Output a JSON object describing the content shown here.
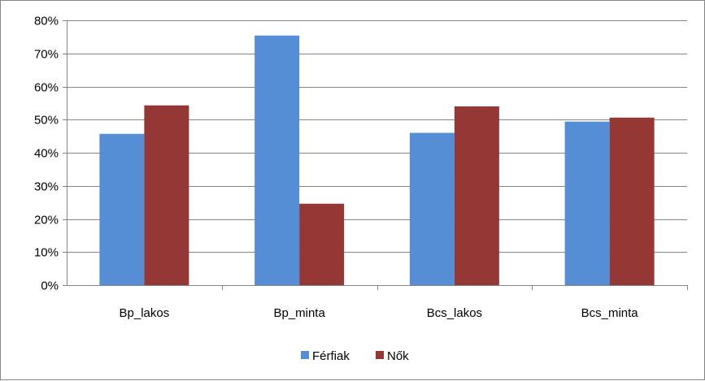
{
  "chart_data": {
    "type": "bar",
    "categories": [
      "Bp_lakos",
      "Bp_minta",
      "Bcs_lakos",
      "Bcs_minta"
    ],
    "series": [
      {
        "name": "Férfiak",
        "color": "#558ED5",
        "values": [
          45.7,
          75.4,
          46.0,
          49.4
        ]
      },
      {
        "name": "Nők",
        "color": "#953735",
        "values": [
          54.3,
          24.6,
          54.0,
          50.6
        ]
      }
    ],
    "yticks": [
      "0%",
      "10%",
      "20%",
      "30%",
      "40%",
      "50%",
      "60%",
      "70%",
      "80%"
    ],
    "ylim": [
      0,
      80
    ],
    "grid": true,
    "legend_position": "bottom",
    "title": "",
    "xlabel": "",
    "ylabel": ""
  }
}
